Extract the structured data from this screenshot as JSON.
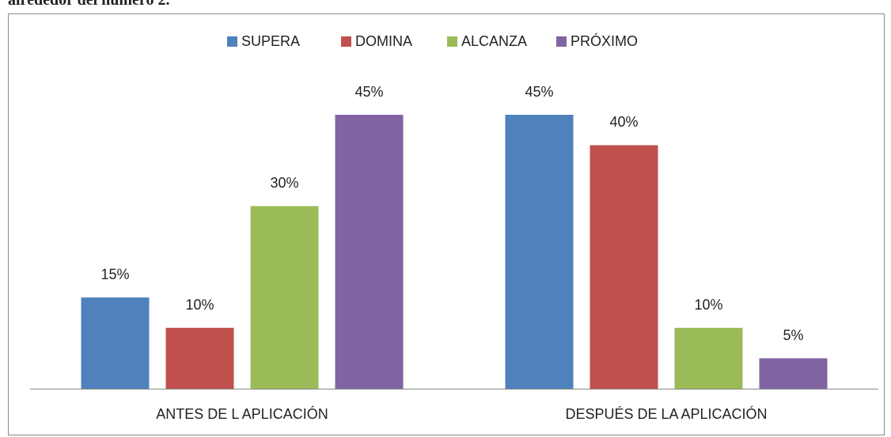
{
  "page_text": "alrededor del número 2.",
  "chart_data": {
    "type": "bar",
    "categories": [
      "ANTES DE L APLICACIÓN",
      "DESPUÉS DE LA APLICACIÓN"
    ],
    "series": [
      {
        "name": "SUPERA",
        "color": "#4f81bd",
        "values": [
          15,
          45
        ],
        "value_labels": [
          "15%",
          "45%"
        ]
      },
      {
        "name": "DOMINA",
        "color": "#c0504d",
        "values": [
          10,
          40
        ],
        "value_labels": [
          "10%",
          "40%"
        ]
      },
      {
        "name": "ALCANZA",
        "color": "#9bbb59",
        "values": [
          30,
          10
        ],
        "value_labels": [
          "30%",
          "10%"
        ]
      },
      {
        "name": "PRÓXIMO",
        "color": "#8064a2",
        "values": [
          45,
          5
        ],
        "value_labels": [
          "45%",
          "5%"
        ]
      }
    ],
    "legend": "top"
  }
}
